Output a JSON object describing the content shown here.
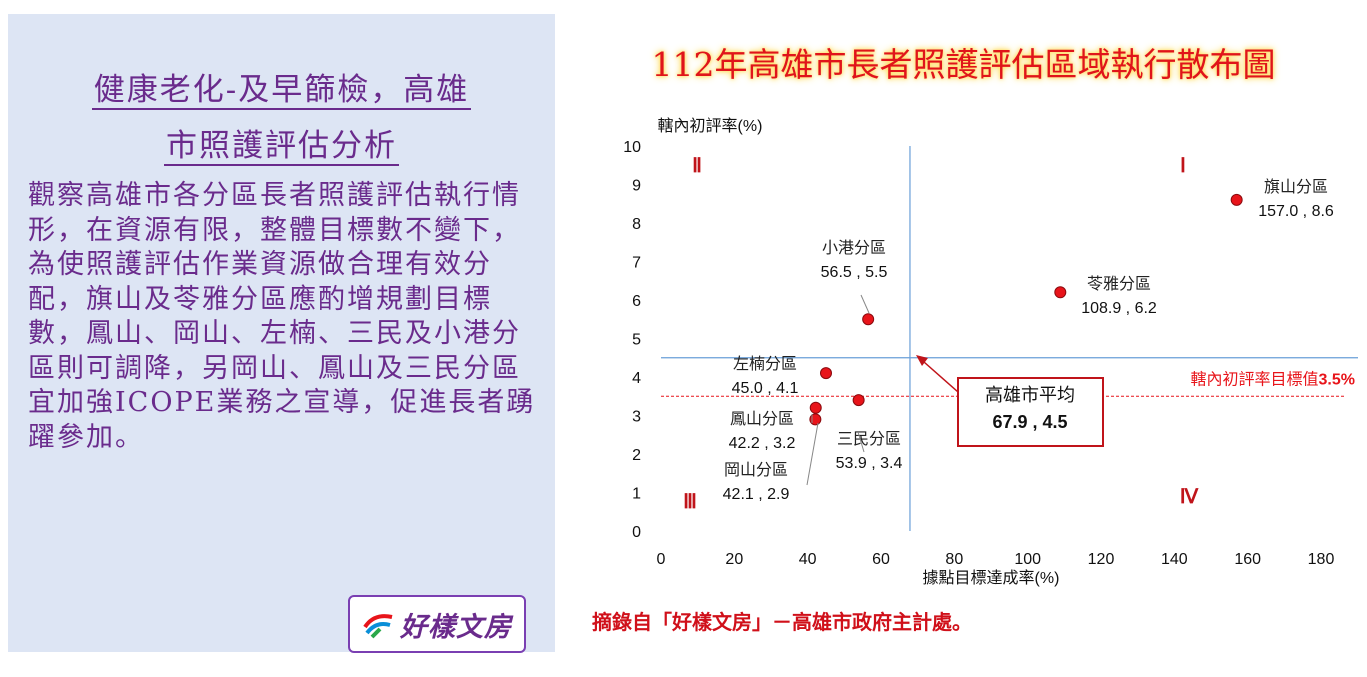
{
  "panel": {
    "title_line1": "健康老化-及早篩檢，高雄",
    "title_line2": "市照護評估分析",
    "body": "觀察高雄市各分區長者照護評估執行情形，在資源有限，整體目標數不變下，為使照護評估作業資源做合理有效分配，旗山及苓雅分區應酌增規劃目標數，鳳山、岡山、左楠、三民及小港分區則可調降，另岡山、鳳山及三民分區宜加強ICOPE業務之宣導，促進長者踴躍參加。",
    "logo_text": "好樣文房"
  },
  "credit": "摘錄自「好樣文房」－高雄市政府主計處。",
  "chart_data": {
    "type": "scatter",
    "title": "112年高雄市長者照護評估區域執行散布圖",
    "xlabel": "據點目標達成率(%)",
    "ylabel": "轄內初評率(%)",
    "xlim": [
      0,
      180
    ],
    "ylim": [
      0,
      10
    ],
    "xticks": [
      0,
      20,
      40,
      60,
      80,
      100,
      120,
      140,
      160,
      180
    ],
    "yticks": [
      0,
      1,
      2,
      3,
      4,
      5,
      6,
      7,
      8,
      9,
      10
    ],
    "grid": false,
    "point_color": "#e8141a",
    "points": [
      {
        "name": "旗山分區",
        "x": 157.0,
        "y": 8.6,
        "label": "157.0 , 8.6"
      },
      {
        "name": "苓雅分區",
        "x": 108.9,
        "y": 6.2,
        "label": "108.9 , 6.2"
      },
      {
        "name": "小港分區",
        "x": 56.5,
        "y": 5.5,
        "label": "56.5 , 5.5"
      },
      {
        "name": "左楠分區",
        "x": 45.0,
        "y": 4.1,
        "label": "45.0 , 4.1"
      },
      {
        "name": "三民分區",
        "x": 53.9,
        "y": 3.4,
        "label": "53.9 , 3.4"
      },
      {
        "name": "鳳山分區",
        "x": 42.2,
        "y": 3.2,
        "label": "42.2 , 3.2"
      },
      {
        "name": "岡山分區",
        "x": 42.1,
        "y": 2.9,
        "label": "42.1 , 2.9"
      }
    ],
    "average": {
      "x": 67.9,
      "y": 4.5,
      "name": "高雄市平均",
      "label": "67.9 , 4.5",
      "line_color": "#6a9fd8"
    },
    "target": {
      "y": 3.5,
      "label": "轄內初評率目標值",
      "value_label": "3.5%",
      "color": "#e8141a"
    },
    "quadrants": [
      "Ⅰ",
      "Ⅱ",
      "Ⅲ",
      "Ⅳ"
    ]
  }
}
